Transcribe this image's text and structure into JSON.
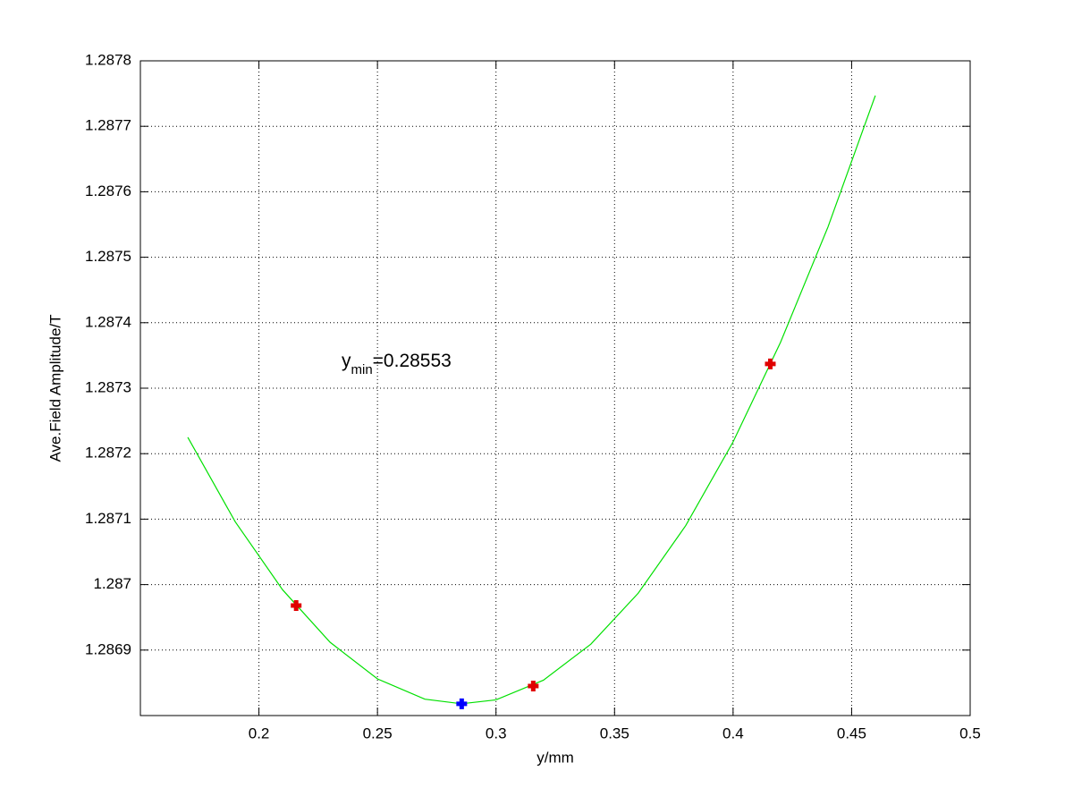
{
  "chart_data": {
    "type": "line",
    "xlabel": "y/mm",
    "ylabel": "Ave.Field Amplitude/T",
    "annotation": {
      "text": "y",
      "subscript": "min",
      "suffix": "=0.28553"
    },
    "xlim": [
      0.15,
      0.5
    ],
    "ylim": [
      1.2868,
      1.2878
    ],
    "xticks": [
      0.2,
      0.25,
      0.3,
      0.35,
      0.4,
      0.45,
      0.5
    ],
    "yticks": [
      1.2869,
      1.287,
      1.2871,
      1.2872,
      1.2873,
      1.2874,
      1.2875,
      1.2876,
      1.2877,
      1.2878
    ],
    "grid": true,
    "series": [
      {
        "mode": "line",
        "color": "#00e000",
        "x": [
          0.17,
          0.19,
          0.21,
          0.23,
          0.25,
          0.27,
          0.2855,
          0.3,
          0.32,
          0.34,
          0.36,
          0.38,
          0.4,
          0.42,
          0.44,
          0.46
        ],
        "values": [
          1.287225,
          1.287096,
          1.286992,
          1.286912,
          1.286856,
          1.286825,
          1.286818,
          1.286824,
          1.286854,
          1.286909,
          1.286987,
          1.28709,
          1.287218,
          1.28737,
          1.287546,
          1.287747
        ]
      },
      {
        "mode": "markers",
        "color": "#e00000",
        "x": [
          0.2157,
          0.3157,
          0.4157
        ],
        "values": [
          1.286968,
          1.286845,
          1.287337
        ]
      },
      {
        "mode": "markers",
        "color": "#0000ff",
        "x": [
          0.28553
        ],
        "values": [
          1.286818
        ]
      }
    ]
  }
}
